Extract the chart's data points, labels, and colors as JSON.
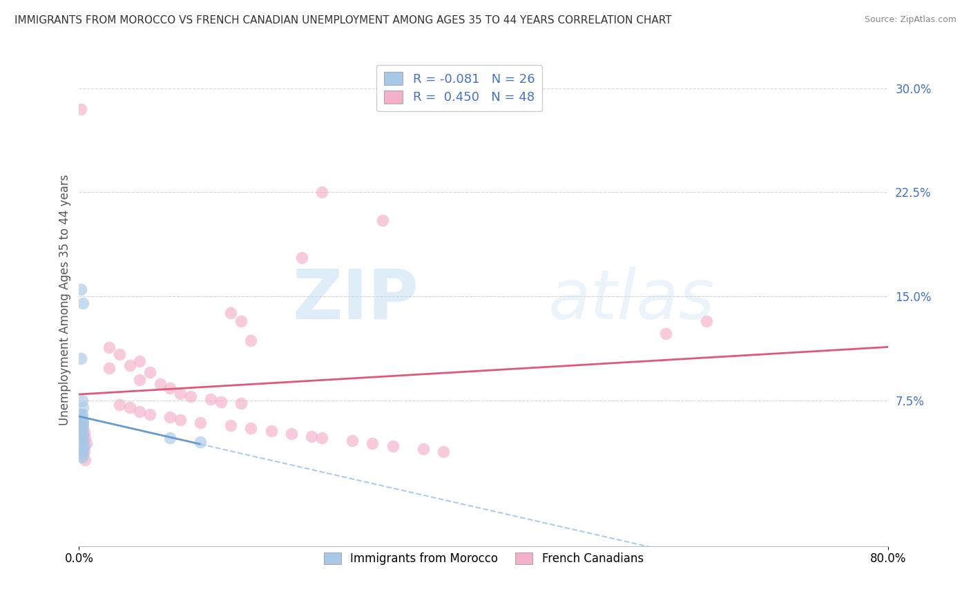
{
  "title": "IMMIGRANTS FROM MOROCCO VS FRENCH CANADIAN UNEMPLOYMENT AMONG AGES 35 TO 44 YEARS CORRELATION CHART",
  "source": "Source: ZipAtlas.com",
  "ylabel": "Unemployment Among Ages 35 to 44 years",
  "xlim": [
    0.0,
    0.8
  ],
  "ylim": [
    -0.03,
    0.325
  ],
  "yticks": [
    0.075,
    0.15,
    0.225,
    0.3
  ],
  "ytick_labels": [
    "7.5%",
    "15.0%",
    "22.5%",
    "30.0%"
  ],
  "xtick_vals": [
    0.0,
    0.8
  ],
  "xtick_labels": [
    "0.0%",
    "80.0%"
  ],
  "blue_R": -0.081,
  "blue_N": 26,
  "pink_R": 0.45,
  "pink_N": 48,
  "blue_color": "#a8c8e8",
  "pink_color": "#f4b0c8",
  "trend_blue_solid": "#6699cc",
  "trend_blue_dash": "#aaccee",
  "trend_pink": "#e05878",
  "blue_label": "Immigrants from Morocco",
  "pink_label": "French Canadians",
  "blue_scatter_x": [
    0.002,
    0.004,
    0.002,
    0.003,
    0.004,
    0.003,
    0.002,
    0.003,
    0.004,
    0.003,
    0.002,
    0.003,
    0.004,
    0.003,
    0.004,
    0.003,
    0.005,
    0.004,
    0.003,
    0.004,
    0.003,
    0.004,
    0.003,
    0.002,
    0.09,
    0.12
  ],
  "blue_scatter_y": [
    0.155,
    0.145,
    0.105,
    0.075,
    0.07,
    0.065,
    0.065,
    0.062,
    0.06,
    0.058,
    0.055,
    0.052,
    0.05,
    0.048,
    0.046,
    0.044,
    0.042,
    0.04,
    0.038,
    0.036,
    0.034,
    0.058,
    0.055,
    0.05,
    0.048,
    0.045
  ],
  "pink_scatter_x": [
    0.002,
    0.24,
    0.3,
    0.22,
    0.15,
    0.16,
    0.17,
    0.03,
    0.04,
    0.06,
    0.03,
    0.05,
    0.07,
    0.06,
    0.08,
    0.09,
    0.1,
    0.11,
    0.13,
    0.14,
    0.16,
    0.04,
    0.05,
    0.06,
    0.07,
    0.09,
    0.1,
    0.12,
    0.15,
    0.17,
    0.19,
    0.21,
    0.23,
    0.24,
    0.27,
    0.29,
    0.31,
    0.34,
    0.36,
    0.003,
    0.004,
    0.005,
    0.006,
    0.007,
    0.58,
    0.62,
    0.005,
    0.006
  ],
  "pink_scatter_y": [
    0.285,
    0.225,
    0.205,
    0.178,
    0.138,
    0.132,
    0.118,
    0.113,
    0.108,
    0.103,
    0.098,
    0.1,
    0.095,
    0.09,
    0.087,
    0.084,
    0.08,
    0.078,
    0.076,
    0.074,
    0.073,
    0.072,
    0.07,
    0.067,
    0.065,
    0.063,
    0.061,
    0.059,
    0.057,
    0.055,
    0.053,
    0.051,
    0.049,
    0.048,
    0.046,
    0.044,
    0.042,
    0.04,
    0.038,
    0.058,
    0.055,
    0.052,
    0.048,
    0.044,
    0.123,
    0.132,
    0.038,
    0.032
  ],
  "watermark_zip": "ZIP",
  "watermark_atlas": "atlas",
  "background_color": "#ffffff",
  "grid_color": "#cccccc"
}
